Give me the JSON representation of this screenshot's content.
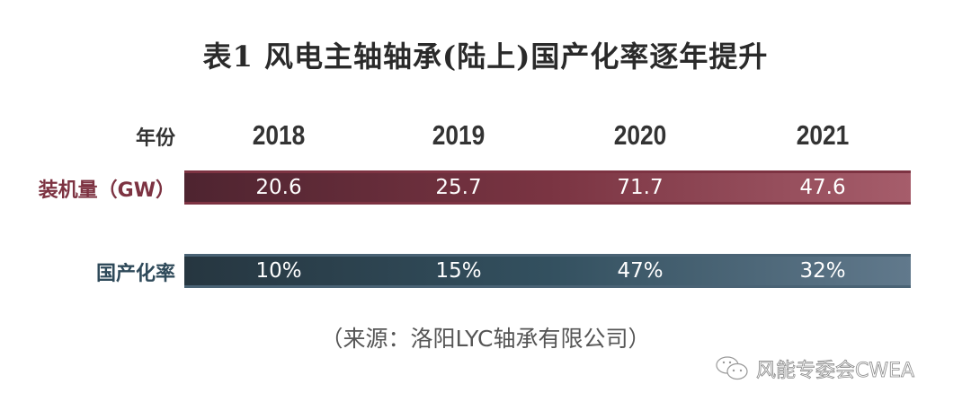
{
  "title": "表1 风电主轴轴承(陆上)国产化率逐年提升",
  "header_label": "年份",
  "years": [
    "2018",
    "2019",
    "2020",
    "2021"
  ],
  "rows": [
    {
      "label": "装机量（GW）",
      "values": [
        "20.6",
        "25.7",
        "71.7",
        "47.6"
      ],
      "color": "#7a3442"
    },
    {
      "label": "国产化率",
      "values": [
        "10%",
        "15%",
        "47%",
        "32%"
      ],
      "color": "#33505f"
    }
  ],
  "source": "（来源：洛阳LYC轴承有限公司）",
  "watermark": {
    "icon": "wechat-icon",
    "text": "风能专委会CWEA"
  }
}
